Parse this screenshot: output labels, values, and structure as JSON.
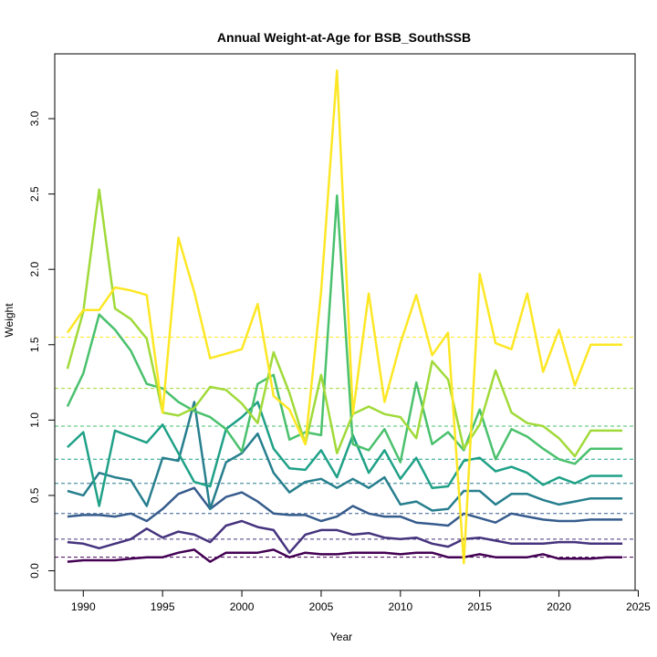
{
  "chart_data": {
    "type": "line",
    "title": "Annual Weight-at-Age for BSB_SouthSSB",
    "xlabel": "Year",
    "ylabel": "Weight",
    "xlim": [
      1988.2,
      2024.8
    ],
    "ylim": [
      -0.13,
      3.43
    ],
    "x_ticks": [
      1990,
      1995,
      2000,
      2005,
      2010,
      2015,
      2020,
      2025
    ],
    "y_ticks": [
      0.0,
      0.5,
      1.0,
      1.5,
      2.0,
      2.5,
      3.0
    ],
    "y_tick_labels": [
      "0.0",
      "0.5",
      "1.0",
      "1.5",
      "2.0",
      "2.5",
      "3.0"
    ],
    "grid": false,
    "legend": "none",
    "x": [
      1989,
      1990,
      1991,
      1992,
      1993,
      1994,
      1995,
      1996,
      1997,
      1998,
      1999,
      2000,
      2001,
      2002,
      2003,
      2004,
      2005,
      2006,
      2007,
      2008,
      2009,
      2010,
      2011,
      2012,
      2013,
      2014,
      2015,
      2016,
      2017,
      2018,
      2019,
      2020,
      2021,
      2022,
      2023,
      2024
    ],
    "series": [
      {
        "color": "#440154",
        "mean": 0.09,
        "values": [
          0.06,
          0.07,
          0.07,
          0.07,
          0.08,
          0.09,
          0.09,
          0.12,
          0.14,
          0.06,
          0.12,
          0.12,
          0.12,
          0.14,
          0.09,
          0.12,
          0.11,
          0.11,
          0.12,
          0.12,
          0.12,
          0.11,
          0.12,
          0.12,
          0.09,
          0.09,
          0.11,
          0.09,
          0.09,
          0.09,
          0.11,
          0.08,
          0.08,
          0.08,
          0.09,
          0.09
        ]
      },
      {
        "color": "#46337E",
        "mean": 0.21,
        "values": [
          0.19,
          0.18,
          0.15,
          0.18,
          0.21,
          0.28,
          0.22,
          0.26,
          0.24,
          0.19,
          0.3,
          0.33,
          0.29,
          0.27,
          0.12,
          0.24,
          0.27,
          0.27,
          0.24,
          0.25,
          0.22,
          0.21,
          0.22,
          0.18,
          0.16,
          0.21,
          0.22,
          0.2,
          0.18,
          0.18,
          0.18,
          0.19,
          0.19,
          0.18,
          0.18,
          0.18
        ]
      },
      {
        "color": "#365C8D",
        "mean": 0.38,
        "values": [
          0.36,
          0.37,
          0.37,
          0.36,
          0.38,
          0.33,
          0.41,
          0.51,
          0.55,
          0.41,
          0.49,
          0.52,
          0.46,
          0.38,
          0.37,
          0.37,
          0.33,
          0.36,
          0.43,
          0.38,
          0.36,
          0.36,
          0.32,
          0.31,
          0.3,
          0.38,
          0.35,
          0.32,
          0.38,
          0.36,
          0.34,
          0.33,
          0.33,
          0.34,
          0.34,
          0.34
        ]
      },
      {
        "color": "#277F8E",
        "mean": 0.58,
        "values": [
          0.53,
          0.5,
          0.65,
          0.62,
          0.6,
          0.43,
          0.75,
          0.73,
          1.12,
          0.41,
          0.72,
          0.78,
          0.91,
          0.65,
          0.52,
          0.59,
          0.61,
          0.55,
          0.61,
          0.55,
          0.62,
          0.44,
          0.46,
          0.4,
          0.41,
          0.53,
          0.53,
          0.44,
          0.51,
          0.51,
          0.47,
          0.44,
          0.46,
          0.48,
          0.48,
          0.48
        ]
      },
      {
        "color": "#1FA187",
        "mean": 0.74,
        "values": [
          0.82,
          0.92,
          0.43,
          0.93,
          0.89,
          0.85,
          0.97,
          0.78,
          0.59,
          0.56,
          0.94,
          1.02,
          1.12,
          0.81,
          0.68,
          0.67,
          0.8,
          0.62,
          0.9,
          0.65,
          0.8,
          0.61,
          0.75,
          0.55,
          0.56,
          0.73,
          0.75,
          0.66,
          0.69,
          0.65,
          0.57,
          0.62,
          0.58,
          0.63,
          0.63,
          0.63
        ]
      },
      {
        "color": "#4AC16D",
        "mean": 0.96,
        "values": [
          1.09,
          1.31,
          1.7,
          1.6,
          1.46,
          1.24,
          1.21,
          1.12,
          1.06,
          1.02,
          0.94,
          0.79,
          1.24,
          1.3,
          0.87,
          0.92,
          0.9,
          2.49,
          0.84,
          0.8,
          0.94,
          0.72,
          1.25,
          0.84,
          0.92,
          0.8,
          1.07,
          0.74,
          0.94,
          0.89,
          0.81,
          0.74,
          0.71,
          0.81,
          0.81,
          0.81
        ]
      },
      {
        "color": "#A0DA39",
        "mean": 1.21,
        "values": [
          1.34,
          1.72,
          2.53,
          1.74,
          1.67,
          1.54,
          1.05,
          1.03,
          1.08,
          1.22,
          1.2,
          1.11,
          0.98,
          1.45,
          1.18,
          0.84,
          1.3,
          0.78,
          1.04,
          1.09,
          1.04,
          1.02,
          0.88,
          1.39,
          1.27,
          0.81,
          0.97,
          1.33,
          1.05,
          0.98,
          0.96,
          0.88,
          0.76,
          0.93,
          0.93,
          0.93
        ]
      },
      {
        "color": "#FDE725",
        "mean": 1.55,
        "values": [
          1.58,
          1.73,
          1.73,
          1.88,
          1.86,
          1.83,
          1.05,
          2.21,
          1.85,
          1.41,
          1.44,
          1.47,
          1.77,
          1.16,
          1.07,
          0.84,
          1.85,
          3.32,
          1.04,
          1.84,
          1.12,
          1.51,
          1.83,
          1.43,
          1.58,
          0.05,
          1.97,
          1.51,
          1.47,
          1.84,
          1.32,
          1.6,
          1.23,
          1.5,
          1.5,
          1.5
        ]
      }
    ]
  }
}
